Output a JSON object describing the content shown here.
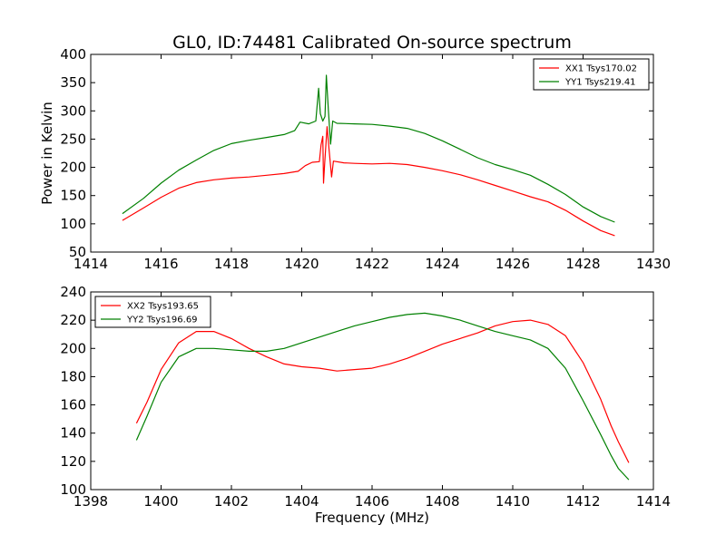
{
  "title": "GL0, ID:74481 Calibrated On-source spectrum",
  "chart_data": [
    {
      "type": "line",
      "ylabel": "Power in Kelvin",
      "xlabel": "",
      "xlim": [
        1414,
        1430
      ],
      "ylim": [
        50,
        400
      ],
      "xticks": [
        1414,
        1416,
        1418,
        1420,
        1422,
        1424,
        1426,
        1428,
        1430
      ],
      "yticks": [
        50,
        100,
        150,
        200,
        250,
        300,
        350,
        400
      ],
      "legend_position": "top-right",
      "grid": false,
      "series": [
        {
          "name": "XX1 Tsys170.02",
          "color": "#ff0000",
          "points": [
            [
              1414.9,
              106
            ],
            [
              1415.5,
              128
            ],
            [
              1416,
              147
            ],
            [
              1416.5,
              163
            ],
            [
              1417,
              173
            ],
            [
              1417.5,
              178
            ],
            [
              1418,
              181
            ],
            [
              1418.5,
              183
            ],
            [
              1419,
              186
            ],
            [
              1419.5,
              189
            ],
            [
              1419.9,
              193
            ],
            [
              1420.1,
              203
            ],
            [
              1420.3,
              209
            ],
            [
              1420.5,
              210
            ],
            [
              1420.55,
              240
            ],
            [
              1420.6,
              255
            ],
            [
              1420.62,
              172
            ],
            [
              1420.65,
              205
            ],
            [
              1420.72,
              272
            ],
            [
              1420.78,
              230
            ],
            [
              1420.85,
              183
            ],
            [
              1420.9,
              211
            ],
            [
              1421.2,
              208
            ],
            [
              1421.5,
              207
            ],
            [
              1422,
              206
            ],
            [
              1422.5,
              207
            ],
            [
              1423,
              205
            ],
            [
              1423.5,
              200
            ],
            [
              1424,
              194
            ],
            [
              1424.5,
              187
            ],
            [
              1425,
              178
            ],
            [
              1425.5,
              168
            ],
            [
              1426,
              158
            ],
            [
              1426.5,
              148
            ],
            [
              1427,
              139
            ],
            [
              1427.5,
              124
            ],
            [
              1428,
              105
            ],
            [
              1428.5,
              88
            ],
            [
              1428.9,
              79
            ]
          ]
        },
        {
          "name": "YY1 Tsys219.41",
          "color": "#008000",
          "points": [
            [
              1414.9,
              118
            ],
            [
              1415.5,
              145
            ],
            [
              1416,
              172
            ],
            [
              1416.5,
              195
            ],
            [
              1417,
              213
            ],
            [
              1417.5,
              230
            ],
            [
              1418,
              242
            ],
            [
              1418.5,
              248
            ],
            [
              1419,
              253
            ],
            [
              1419.5,
              258
            ],
            [
              1419.8,
              265
            ],
            [
              1419.95,
              280
            ],
            [
              1420.2,
              277
            ],
            [
              1420.4,
              282
            ],
            [
              1420.48,
              340
            ],
            [
              1420.53,
              295
            ],
            [
              1420.6,
              282
            ],
            [
              1420.66,
              290
            ],
            [
              1420.7,
              363
            ],
            [
              1420.76,
              300
            ],
            [
              1420.82,
              241
            ],
            [
              1420.88,
              282
            ],
            [
              1421,
              278
            ],
            [
              1421.5,
              277
            ],
            [
              1422,
              276
            ],
            [
              1422.5,
              273
            ],
            [
              1423,
              269
            ],
            [
              1423.5,
              260
            ],
            [
              1424,
              247
            ],
            [
              1424.5,
              232
            ],
            [
              1425,
              217
            ],
            [
              1425.5,
              205
            ],
            [
              1426,
              196
            ],
            [
              1426.5,
              186
            ],
            [
              1427,
              170
            ],
            [
              1427.5,
              152
            ],
            [
              1428,
              130
            ],
            [
              1428.5,
              113
            ],
            [
              1428.9,
              103
            ]
          ]
        }
      ]
    },
    {
      "type": "line",
      "ylabel": "",
      "xlabel": "Frequency (MHz)",
      "xlim": [
        1398,
        1414
      ],
      "ylim": [
        100,
        240
      ],
      "xticks": [
        1398,
        1400,
        1402,
        1404,
        1406,
        1408,
        1410,
        1412,
        1414
      ],
      "yticks": [
        100,
        120,
        140,
        160,
        180,
        200,
        220,
        240
      ],
      "legend_position": "top-left",
      "grid": false,
      "series": [
        {
          "name": "XX2 Tsys193.65",
          "color": "#ff0000",
          "points": [
            [
              1399.3,
              147
            ],
            [
              1399.6,
              162
            ],
            [
              1400,
              185
            ],
            [
              1400.5,
              204
            ],
            [
              1401,
              212
            ],
            [
              1401.5,
              212
            ],
            [
              1402,
              207
            ],
            [
              1402.5,
              200
            ],
            [
              1403,
              194
            ],
            [
              1403.5,
              189
            ],
            [
              1404,
              187
            ],
            [
              1404.5,
              186
            ],
            [
              1405,
              184
            ],
            [
              1405.5,
              185
            ],
            [
              1406,
              186
            ],
            [
              1406.5,
              189
            ],
            [
              1407,
              193
            ],
            [
              1407.5,
              198
            ],
            [
              1408,
              203
            ],
            [
              1408.5,
              207
            ],
            [
              1409,
              211
            ],
            [
              1409.5,
              216
            ],
            [
              1410,
              219
            ],
            [
              1410.5,
              220
            ],
            [
              1411,
              217
            ],
            [
              1411.5,
              209
            ],
            [
              1412,
              190
            ],
            [
              1412.5,
              164
            ],
            [
              1412.8,
              145
            ],
            [
              1413,
              134
            ],
            [
              1413.3,
              119
            ]
          ]
        },
        {
          "name": "YY2 Tsys196.69",
          "color": "#008000",
          "points": [
            [
              1399.3,
              135
            ],
            [
              1399.6,
              152
            ],
            [
              1400,
              176
            ],
            [
              1400.5,
              194
            ],
            [
              1401,
              200
            ],
            [
              1401.5,
              200
            ],
            [
              1402,
              199
            ],
            [
              1402.5,
              198
            ],
            [
              1403,
              198
            ],
            [
              1403.5,
              200
            ],
            [
              1404,
              204
            ],
            [
              1404.5,
              208
            ],
            [
              1405,
              212
            ],
            [
              1405.5,
              216
            ],
            [
              1406,
              219
            ],
            [
              1406.5,
              222
            ],
            [
              1407,
              224
            ],
            [
              1407.5,
              225
            ],
            [
              1408,
              223
            ],
            [
              1408.5,
              220
            ],
            [
              1409,
              216
            ],
            [
              1409.5,
              212
            ],
            [
              1410,
              209
            ],
            [
              1410.5,
              206
            ],
            [
              1411,
              200
            ],
            [
              1411.5,
              186
            ],
            [
              1412,
              163
            ],
            [
              1412.5,
              139
            ],
            [
              1412.8,
              124
            ],
            [
              1413,
              115
            ],
            [
              1413.3,
              107
            ]
          ]
        }
      ]
    }
  ]
}
